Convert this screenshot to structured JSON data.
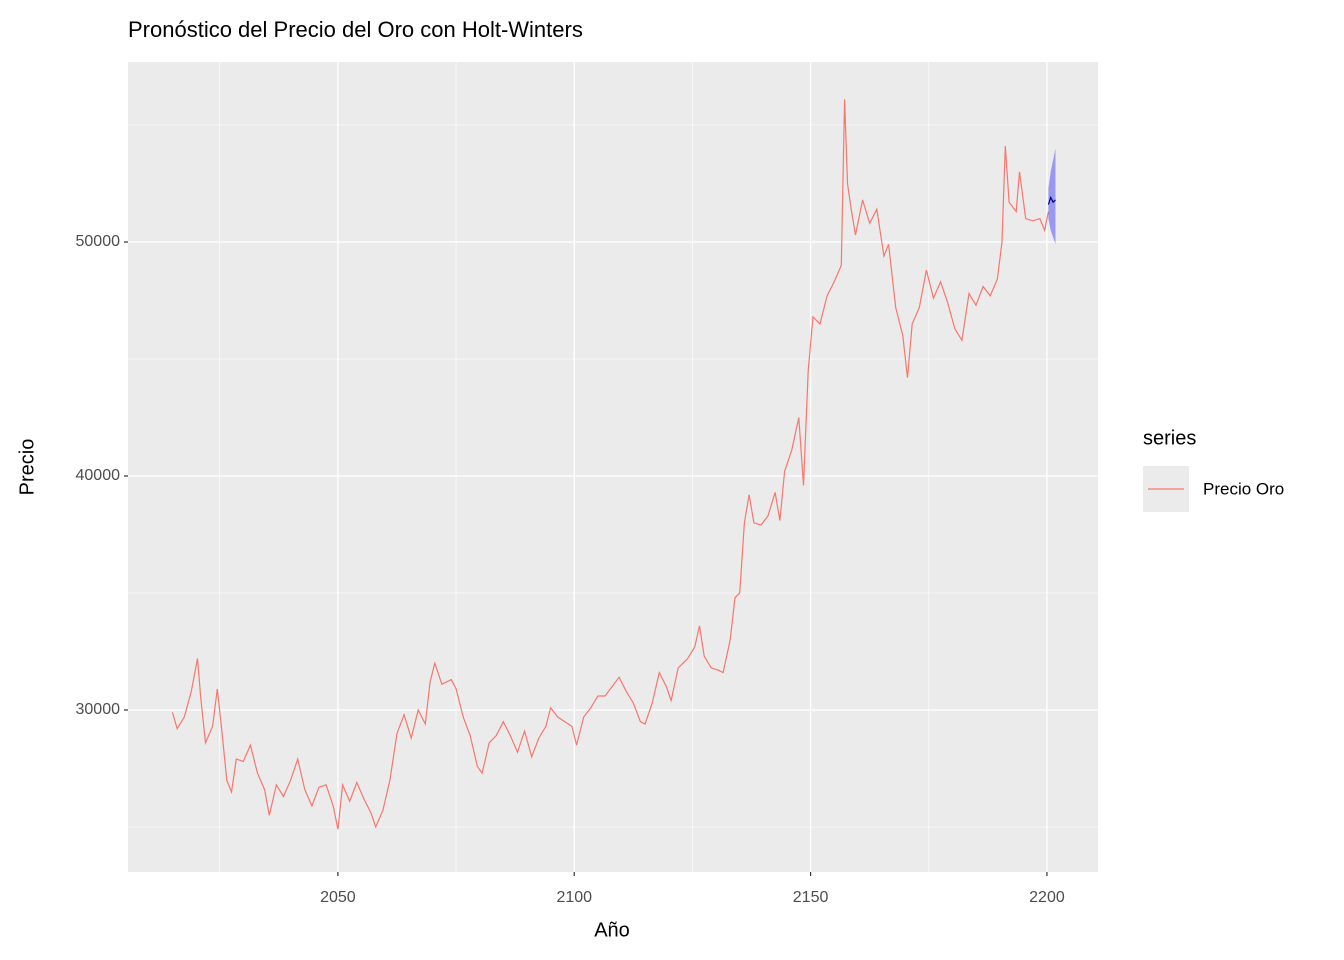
{
  "chart_data": {
    "type": "line",
    "title": "Pronóstico del Precio del Oro con Holt-Winters",
    "x_label": "Año",
    "y_label": "Precio",
    "legend_title": "series",
    "legend": "right",
    "xlim": [
      2005.6,
      2210.8
    ],
    "ylim": [
      23077,
      57692
    ],
    "xticks": [
      2050,
      2100,
      2150,
      2200
    ],
    "yticks": [
      30000,
      40000,
      50000
    ],
    "x_minor_ticks": [
      2025,
      2075,
      2125,
      2175
    ],
    "y_minor_ticks": [
      25000,
      35000,
      45000,
      55000
    ],
    "grid": true,
    "x": [
      2015.0,
      2016.0,
      2017.5,
      2019.0,
      2020.3,
      2021.0,
      2022.0,
      2023.5,
      2024.5,
      2025.5,
      2026.5,
      2027.5,
      2028.5,
      2030.0,
      2031.5,
      2033.0,
      2034.5,
      2035.5,
      2037.0,
      2038.5,
      2040.0,
      2041.5,
      2043.0,
      2044.5,
      2046.0,
      2047.5,
      2049.0,
      2050.0,
      2051.0,
      2052.5,
      2054.0,
      2055.5,
      2057.0,
      2058.0,
      2059.5,
      2061.0,
      2062.5,
      2064.0,
      2065.5,
      2067.0,
      2068.5,
      2069.5,
      2070.5,
      2072.0,
      2074.0,
      2075.0,
      2076.5,
      2078.0,
      2079.5,
      2080.5,
      2082.0,
      2083.5,
      2085.0,
      2086.5,
      2088.0,
      2089.5,
      2091.0,
      2092.5,
      2094.0,
      2095.0,
      2096.5,
      2098.0,
      2099.5,
      2100.5,
      2102.0,
      2103.5,
      2105.0,
      2106.5,
      2108.0,
      2109.5,
      2111.0,
      2112.5,
      2114.0,
      2115.0,
      2116.5,
      2118.0,
      2119.5,
      2120.5,
      2122.0,
      2124.0,
      2125.5,
      2126.5,
      2127.5,
      2129.0,
      2130.5,
      2131.5,
      2133.0,
      2134.0,
      2135.0,
      2136.0,
      2137.0,
      2138.0,
      2139.5,
      2141.0,
      2142.5,
      2143.5,
      2144.5,
      2146.0,
      2147.5,
      2148.5,
      2149.5,
      2150.5,
      2152.0,
      2153.5,
      2155.0,
      2156.5,
      2157.2,
      2157.8,
      2158.5,
      2159.5,
      2161.0,
      2162.5,
      2164.0,
      2165.5,
      2166.5,
      2168.0,
      2169.5,
      2170.5,
      2171.5,
      2173.0,
      2174.5,
      2176.0,
      2177.5,
      2179.0,
      2180.5,
      2182.0,
      2183.5,
      2185.0,
      2186.5,
      2188.0,
      2189.5,
      2190.5,
      2191.2,
      2192.0,
      2193.5,
      2194.2,
      2195.5,
      2197.0,
      2198.5,
      2199.5,
      2200.3
    ],
    "series": [
      {
        "name": "Precio Oro",
        "color": "#F8766D",
        "values": [
          29900,
          29200,
          29700,
          30800,
          32200,
          30500,
          28600,
          29300,
          30900,
          29000,
          27000,
          26500,
          27900,
          27800,
          28500,
          27300,
          26600,
          25500,
          26800,
          26300,
          27000,
          27900,
          26600,
          25900,
          26700,
          26800,
          25900,
          24900,
          26800,
          26100,
          26900,
          26200,
          25600,
          25000,
          25700,
          27000,
          29000,
          29800,
          28800,
          30000,
          29400,
          31200,
          32000,
          31100,
          31300,
          30900,
          29700,
          28900,
          27600,
          27300,
          28600,
          28900,
          29500,
          28900,
          28200,
          29100,
          28000,
          28800,
          29300,
          30100,
          29700,
          29500,
          29300,
          28500,
          29700,
          30100,
          30600,
          30600,
          31000,
          31400,
          30800,
          30300,
          29500,
          29400,
          30300,
          31600,
          31000,
          30400,
          31800,
          32200,
          32700,
          33600,
          32300,
          31800,
          31700,
          31600,
          33000,
          34800,
          35000,
          38000,
          39200,
          38000,
          37900,
          38300,
          39300,
          38100,
          40200,
          41100,
          42500,
          39600,
          44500,
          46800,
          46500,
          47700,
          48300,
          49000,
          56100,
          52500,
          51500,
          50300,
          51800,
          50800,
          51400,
          49400,
          49900,
          47200,
          46000,
          44200,
          46500,
          47200,
          48800,
          47600,
          48300,
          47400,
          46300,
          45800,
          47800,
          47300,
          48100,
          47700,
          48400,
          50000,
          54100,
          51700,
          51300,
          53000,
          51000,
          50900,
          51000,
          50500,
          51300
        ]
      }
    ],
    "forecast": {
      "color": "#00008B",
      "band_color": "#0000FF",
      "x": [
        2200.3,
        2200.8,
        2201.3,
        2201.8
      ],
      "values": [
        51600,
        51900,
        51700,
        51800
      ],
      "lower": [
        51000,
        50500,
        50200,
        49900
      ],
      "upper": [
        52300,
        53000,
        53500,
        54000
      ]
    }
  }
}
